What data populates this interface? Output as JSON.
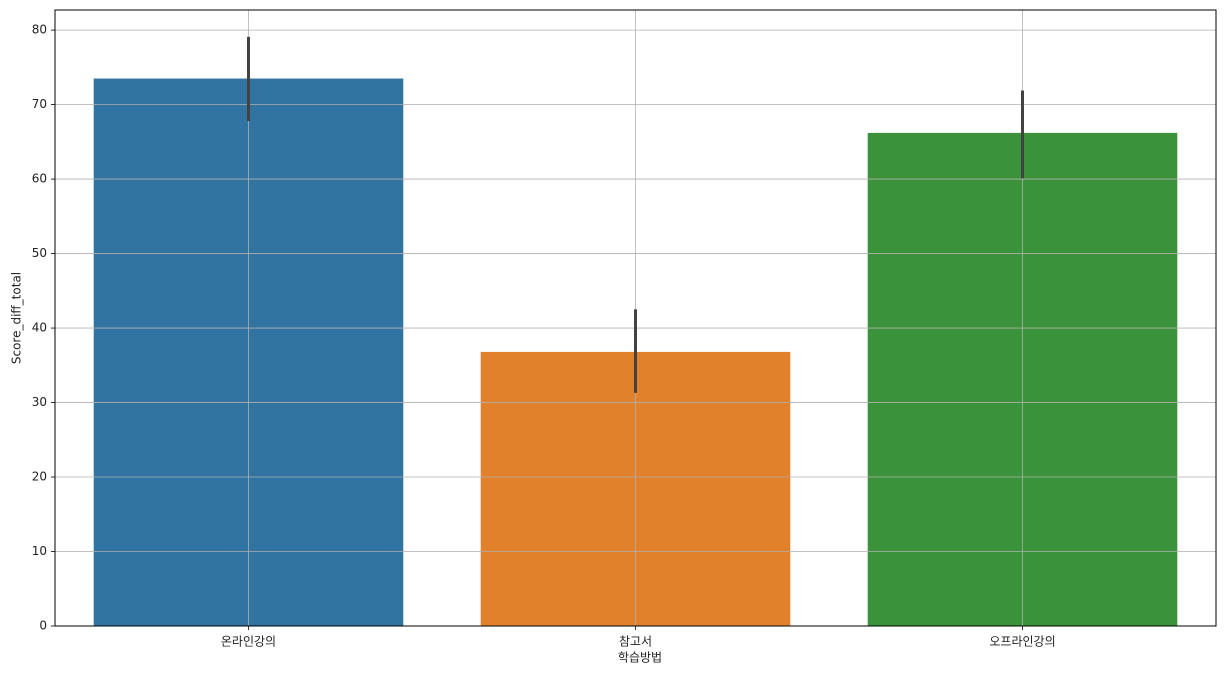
{
  "chart_data": {
    "type": "bar",
    "x_label": "학습방법",
    "y_label": "Score_diff_total",
    "categories": [
      "온라인강의",
      "참고서",
      "오프라인강의"
    ],
    "values": [
      73.5,
      36.8,
      66.2
    ],
    "ci": [
      [
        67.8,
        79.1
      ],
      [
        31.3,
        42.5
      ],
      [
        60.1,
        71.9
      ]
    ],
    "colors": [
      "#3274a1",
      "#e1812c",
      "#3a923a"
    ],
    "error_color": "#424242",
    "ylim": [
      0,
      82.7
    ],
    "yticks": [
      0,
      10,
      20,
      30,
      40,
      50,
      60,
      70,
      80
    ],
    "grid": true
  }
}
